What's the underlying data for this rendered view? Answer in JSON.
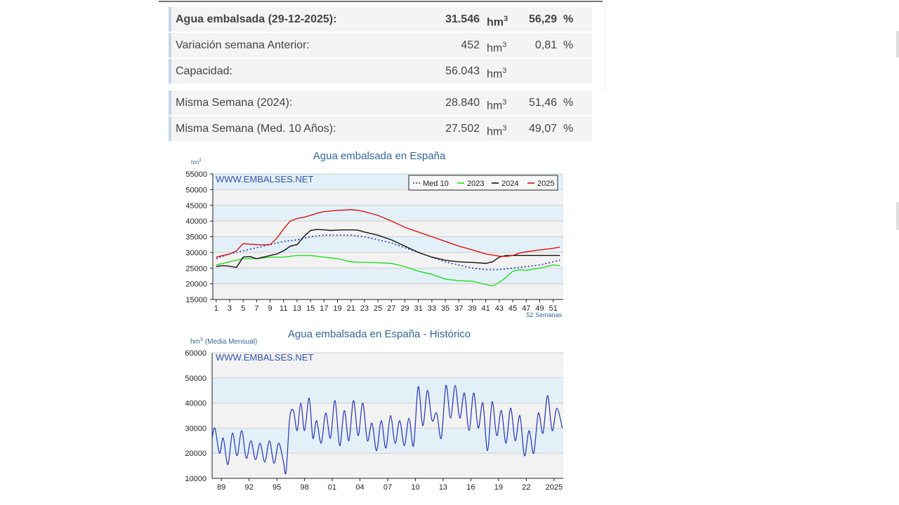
{
  "stats": {
    "current": {
      "label": "Agua embalsada (29-12-2025):",
      "value": "31.546",
      "unit": "hm",
      "pct": "56,29",
      "pct_sign": "%"
    },
    "weekly": {
      "label": "Variación semana Anterior:",
      "value": "452",
      "unit": "hm",
      "pct": "0,81",
      "pct_sign": "%"
    },
    "capacity": {
      "label": "Capacidad:",
      "value": "56.043",
      "unit": "hm"
    },
    "last_year": {
      "label": "Misma Semana (2024):",
      "value": "28.840",
      "unit": "hm",
      "pct": "51,46",
      "pct_sign": "%"
    },
    "avg10": {
      "label": "Misma Semana (Med. 10 Años):",
      "value": "27.502",
      "unit": "hm",
      "pct": "49,07",
      "pct_sign": "%"
    },
    "unit_exp": "3"
  },
  "chart_data": [
    {
      "type": "line",
      "title": "Agua embalsada en España",
      "ylabel": "hm",
      "ylabel_exp": "3",
      "xlabel": "52 Semanas",
      "watermark": "WWW.EMBALSES.NET",
      "ylim": [
        15000,
        55000
      ],
      "yticks": [
        15000,
        20000,
        25000,
        30000,
        35000,
        40000,
        45000,
        50000,
        55000
      ],
      "xlim": [
        0.5,
        52.5
      ],
      "xticks": [
        1,
        3,
        5,
        7,
        9,
        11,
        13,
        15,
        17,
        19,
        21,
        23,
        25,
        27,
        29,
        31,
        33,
        35,
        37,
        39,
        41,
        43,
        45,
        47,
        49,
        51
      ],
      "legend_position": "top-right",
      "grid": true,
      "series": [
        {
          "name": "Med 10",
          "color": "#2233bb",
          "dashed": true,
          "x": [
            1,
            3,
            5,
            7,
            9,
            11,
            13,
            15,
            17,
            19,
            21,
            23,
            25,
            27,
            29,
            31,
            33,
            35,
            37,
            39,
            41,
            43,
            45,
            47,
            49,
            51,
            52
          ],
          "y": [
            28000,
            29500,
            30500,
            31500,
            32500,
            33500,
            34000,
            35000,
            35500,
            35500,
            35500,
            35000,
            34000,
            33000,
            31500,
            30000,
            28500,
            27000,
            26000,
            25000,
            24500,
            24500,
            25000,
            25500,
            26000,
            27000,
            27500
          ]
        },
        {
          "name": "2023",
          "color": "#22dd22",
          "x": [
            1,
            3,
            5,
            7,
            9,
            11,
            13,
            15,
            17,
            19,
            21,
            23,
            25,
            27,
            29,
            31,
            33,
            35,
            37,
            39,
            41,
            42,
            43,
            44,
            45,
            46,
            47,
            49,
            51,
            52
          ],
          "y": [
            26000,
            27000,
            28000,
            28000,
            28500,
            28500,
            29000,
            29000,
            28500,
            28000,
            27000,
            26800,
            26700,
            26500,
            25500,
            24000,
            23000,
            21500,
            21000,
            20800,
            19800,
            19300,
            20500,
            22000,
            24000,
            24500,
            24300,
            25000,
            26000,
            25800
          ]
        },
        {
          "name": "2024",
          "color": "#111111",
          "x": [
            1,
            2,
            3,
            4,
            5,
            6,
            7,
            8,
            9,
            10,
            11,
            12,
            13,
            14,
            15,
            16,
            17,
            18,
            19,
            20,
            21,
            22,
            23,
            25,
            27,
            29,
            31,
            33,
            35,
            37,
            39,
            41,
            42,
            43,
            44,
            45,
            47,
            49,
            51,
            52
          ],
          "y": [
            25500,
            25800,
            25600,
            25200,
            28500,
            28700,
            28000,
            28500,
            29000,
            29500,
            30500,
            32000,
            32500,
            35000,
            37000,
            37300,
            37200,
            37000,
            37100,
            37200,
            37200,
            37100,
            36500,
            35500,
            34000,
            32000,
            30000,
            28500,
            27500,
            27000,
            26800,
            26500,
            27000,
            28500,
            29000,
            29000,
            29000,
            29000,
            29000,
            29000
          ]
        },
        {
          "name": "2025",
          "color": "#dd1111",
          "x": [
            1,
            2,
            3,
            4,
            5,
            6,
            7,
            8,
            9,
            10,
            11,
            12,
            13,
            14,
            15,
            16,
            17,
            18,
            19,
            20,
            21,
            22,
            23,
            25,
            27,
            29,
            31,
            33,
            35,
            37,
            39,
            41,
            43,
            44,
            45,
            46,
            47,
            49,
            51,
            52
          ],
          "y": [
            28500,
            29000,
            29500,
            30500,
            32800,
            32600,
            32500,
            32400,
            32500,
            34500,
            37500,
            40000,
            40800,
            41200,
            41800,
            42500,
            43000,
            43200,
            43400,
            43500,
            43600,
            43400,
            43000,
            41800,
            40000,
            38000,
            36500,
            35000,
            33500,
            32000,
            30800,
            29500,
            28800,
            28700,
            29000,
            29800,
            30200,
            30800,
            31300,
            31700
          ]
        }
      ]
    },
    {
      "type": "line",
      "title": "Agua embalsada en España - Histórico",
      "ylabel": "hm",
      "ylabel_exp": "3",
      "ylabel_suffix": "(Media Mensual)",
      "watermark": "WWW.EMBALSES.NET",
      "ylim": [
        10000,
        60000
      ],
      "yticks": [
        10000,
        20000,
        30000,
        40000,
        50000,
        60000
      ],
      "xlim": [
        1988,
        2026
      ],
      "xticks": [
        1989,
        1992,
        1995,
        1998,
        2001,
        2004,
        2007,
        2010,
        2013,
        2016,
        2019,
        2022,
        2025
      ],
      "xticklabels": [
        "89",
        "92",
        "95",
        "98",
        "01",
        "04",
        "07",
        "10",
        "13",
        "16",
        "19",
        "22",
        "2025"
      ],
      "grid": true,
      "series": [
        {
          "color": "#2233bb",
          "anchors": [
            [
              1988.0,
              26000
            ],
            [
              1988.3,
              30000
            ],
            [
              1988.8,
              20000
            ],
            [
              1989.2,
              26000
            ],
            [
              1989.7,
              15500
            ],
            [
              1990.2,
              28000
            ],
            [
              1990.7,
              19000
            ],
            [
              1991.2,
              29000
            ],
            [
              1991.7,
              18000
            ],
            [
              1992.2,
              25000
            ],
            [
              1992.7,
              17500
            ],
            [
              1993.2,
              24000
            ],
            [
              1993.7,
              16500
            ],
            [
              1994.2,
              25000
            ],
            [
              1994.7,
              16000
            ],
            [
              1995.2,
              24000
            ],
            [
              1995.7,
              17000
            ],
            [
              1996.0,
              12500
            ],
            [
              1996.4,
              34000
            ],
            [
              1996.8,
              37000
            ],
            [
              1997.2,
              29000
            ],
            [
              1997.6,
              40000
            ],
            [
              1998.0,
              29000
            ],
            [
              1998.5,
              42000
            ],
            [
              1998.9,
              26000
            ],
            [
              1999.3,
              33000
            ],
            [
              1999.8,
              24000
            ],
            [
              2000.3,
              36000
            ],
            [
              2000.8,
              26000
            ],
            [
              2001.3,
              41000
            ],
            [
              2001.8,
              23000
            ],
            [
              2002.3,
              37000
            ],
            [
              2002.8,
              25000
            ],
            [
              2003.3,
              41000
            ],
            [
              2003.8,
              27000
            ],
            [
              2004.3,
              40000
            ],
            [
              2004.8,
              25000
            ],
            [
              2005.3,
              32000
            ],
            [
              2005.8,
              21000
            ],
            [
              2006.3,
              33000
            ],
            [
              2006.8,
              22000
            ],
            [
              2007.3,
              35000
            ],
            [
              2007.8,
              24000
            ],
            [
              2008.3,
              33000
            ],
            [
              2008.8,
              23000
            ],
            [
              2009.3,
              34000
            ],
            [
              2009.8,
              23000
            ],
            [
              2010.3,
              46500
            ],
            [
              2010.8,
              31000
            ],
            [
              2011.3,
              45000
            ],
            [
              2011.8,
              33000
            ],
            [
              2012.3,
              36000
            ],
            [
              2012.8,
              26000
            ],
            [
              2013.3,
              47000
            ],
            [
              2013.8,
              34000
            ],
            [
              2014.3,
              47000
            ],
            [
              2014.8,
              34000
            ],
            [
              2015.3,
              44000
            ],
            [
              2015.8,
              29000
            ],
            [
              2016.3,
              44000
            ],
            [
              2016.8,
              30000
            ],
            [
              2017.3,
              40000
            ],
            [
              2017.8,
              21000
            ],
            [
              2018.3,
              40500
            ],
            [
              2018.8,
              27000
            ],
            [
              2019.3,
              37000
            ],
            [
              2019.8,
              24000
            ],
            [
              2020.3,
              38000
            ],
            [
              2020.8,
              25000
            ],
            [
              2021.3,
              35000
            ],
            [
              2021.8,
              19000
            ],
            [
              2022.3,
              29000
            ],
            [
              2022.8,
              20000
            ],
            [
              2023.3,
              36000
            ],
            [
              2023.8,
              28000
            ],
            [
              2024.3,
              43000
            ],
            [
              2024.8,
              29000
            ],
            [
              2025.3,
              38000
            ],
            [
              2025.9,
              30000
            ]
          ]
        }
      ]
    }
  ]
}
